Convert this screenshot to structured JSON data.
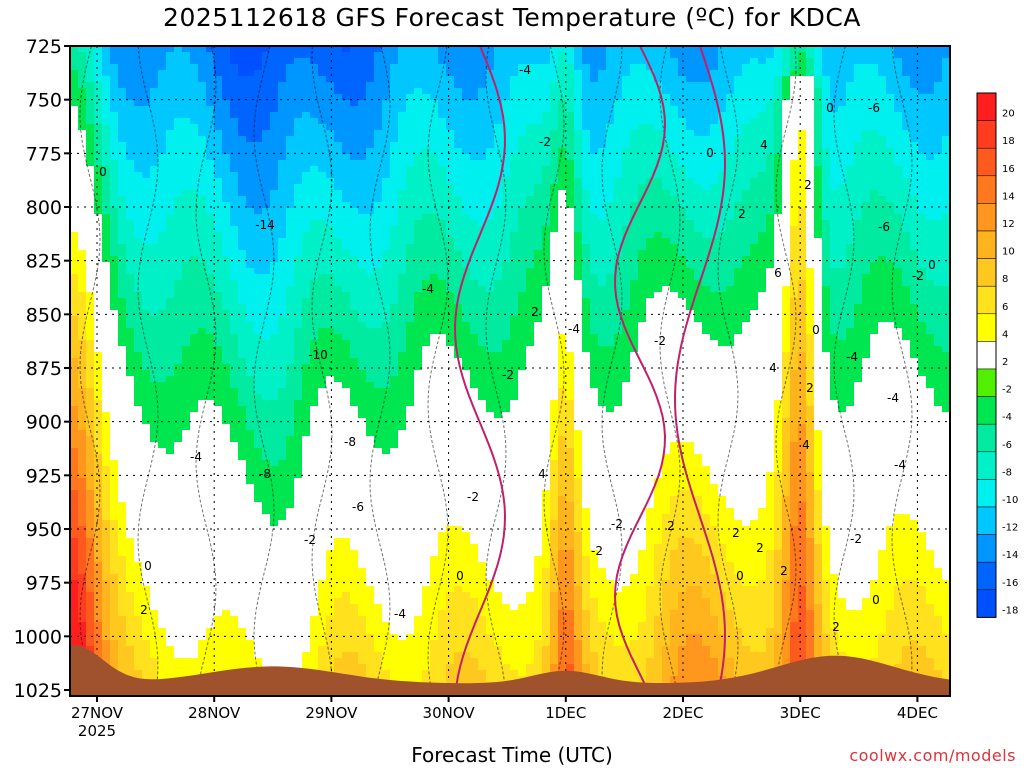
{
  "chart_data": {
    "type": "heatmap",
    "title": "2025112618 GFS Forecast Temperature (ºC) for KDCA",
    "xlabel": "Forecast Time (UTC)",
    "y_axis": {
      "label": "",
      "ticks": [
        "725",
        "750",
        "775",
        "800",
        "825",
        "850",
        "875",
        "900",
        "925",
        "950",
        "975",
        "1000",
        "1025"
      ],
      "range": [
        725,
        1025
      ],
      "inverted": true
    },
    "x_axis": {
      "ticks": [
        "27NOV",
        "28NOV",
        "29NOV",
        "30NOV",
        "1DEC",
        "2DEC",
        "3DEC",
        "4DEC"
      ],
      "year_label": "2025"
    },
    "colorbar": {
      "levels": [
        20,
        18,
        16,
        14,
        12,
        10,
        8,
        6,
        4,
        2,
        -2,
        -4,
        -6,
        -8,
        -10,
        -12,
        -14,
        -16,
        -18
      ],
      "colors": [
        "#ff1e1e",
        "#ff3c1e",
        "#ff5a1e",
        "#ff781e",
        "#ff961e",
        "#ffb41e",
        "#ffc81e",
        "#ffe11e",
        "#ffff00",
        "#ffffff",
        "#50f000",
        "#00e650",
        "#00eba0",
        "#00f0c8",
        "#00f0f0",
        "#00c8ff",
        "#0096ff",
        "#0064ff",
        "#0050ff"
      ],
      "labels": [
        "20",
        "18",
        "16",
        "14",
        "12",
        "10",
        "8",
        "6",
        "4",
        "2",
        "-2",
        "-4",
        "-6",
        "-8",
        "-10",
        "-12",
        "-14",
        "-16",
        "-18"
      ]
    },
    "contour_labels": [
      "-14",
      "-10",
      "-8",
      "-6",
      "-4",
      "-2",
      "0",
      "2",
      "4",
      "6"
    ],
    "grid": true,
    "colors": {
      "ground": "#a0522d",
      "zero_line": "#c0206a",
      "contour": "#000000"
    }
  },
  "credit": "coolwx.com/models"
}
